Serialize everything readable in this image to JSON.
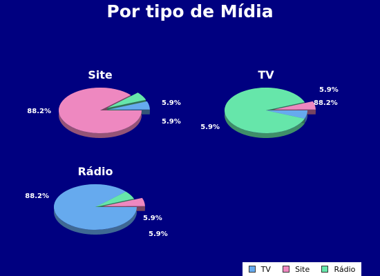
{
  "title": "Por tipo de Mídia",
  "colors": {
    "background": "#000080",
    "text": "#ffffff"
  },
  "chart_data": [
    {
      "type": "pie",
      "title": "Site",
      "slices": [
        {
          "name": "TV",
          "value": 5.9,
          "label": "5.9%",
          "color": "#66aaee",
          "exploded": true
        },
        {
          "name": "Site",
          "value": 88.2,
          "label": "88.2%",
          "color": "#ee88c0",
          "exploded": false
        },
        {
          "name": "Rádio",
          "value": 5.9,
          "label": "5.9%",
          "color": "#66e6aa",
          "exploded": true
        }
      ]
    },
    {
      "type": "pie",
      "title": "TV",
      "slices": [
        {
          "name": "TV",
          "value": 88.2,
          "label": "88.2%",
          "color": "#66e6aa",
          "exploded": false
        },
        {
          "name": "Site",
          "value": 5.9,
          "label": "5.9%",
          "color": "#ee88c0",
          "exploded": true
        },
        {
          "name": "Rádio",
          "value": 5.9,
          "label": "5.9%",
          "color": "#66aaee",
          "exploded": false
        }
      ]
    },
    {
      "type": "pie",
      "title": "Rádio",
      "slices": [
        {
          "name": "TV",
          "value": 88.2,
          "label": "88.2%",
          "color": "#66aaee",
          "exploded": false
        },
        {
          "name": "Site",
          "value": 5.9,
          "label": "5.9%",
          "color": "#ee88c0",
          "exploded": true
        },
        {
          "name": "Rádio",
          "value": 5.9,
          "label": "5.9%",
          "color": "#66e6aa",
          "exploded": false
        }
      ]
    }
  ],
  "legend": {
    "position": "bottom-right",
    "items": [
      {
        "label": "TV",
        "color": "#66aaee"
      },
      {
        "label": "Site",
        "color": "#ee88c0"
      },
      {
        "label": "Rádio",
        "color": "#66e6aa"
      }
    ]
  }
}
